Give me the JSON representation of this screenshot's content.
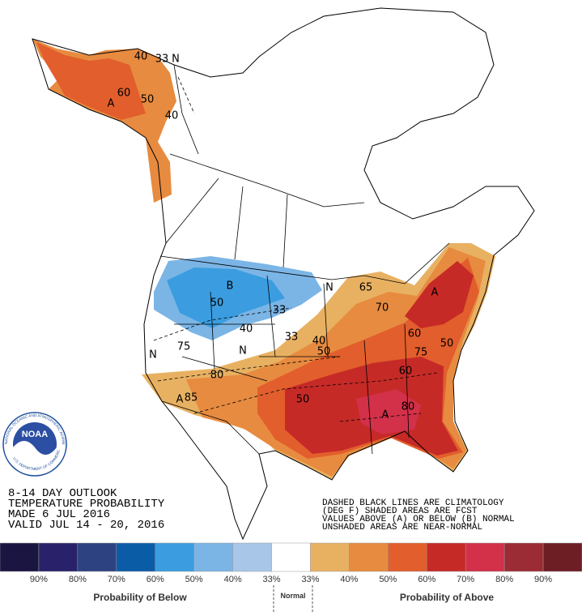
{
  "header": {
    "lines": [
      "8-14 DAY OUTLOOK",
      "TEMPERATURE PROBABILITY",
      "MADE  6 JUL 2016",
      "VALID  JUL 14 - 20, 2016"
    ]
  },
  "notes": {
    "lines": [
      "DASHED BLACK LINES ARE CLIMATOLOGY",
      "(DEG F) SHADED AREAS ARE FCST",
      "VALUES ABOVE (A) OR BELOW (B) NORMAL",
      "UNSHADED AREAS ARE NEAR-NORMAL"
    ]
  },
  "logo": {
    "text": "NOAA",
    "ring_top": "NATIONAL OCEANIC AND ATMOSPHERIC ADMINISTRATION",
    "ring_bottom": "U.S. DEPARTMENT OF COMMERCE"
  },
  "map_labels": [
    "A",
    "40",
    "33",
    "N",
    "60",
    "50",
    "40",
    "B",
    "50",
    "40",
    "33",
    "N",
    "N",
    "N",
    "75",
    "80",
    "A",
    "85",
    "33",
    "40",
    "50",
    "65",
    "70",
    "A",
    "60",
    "75",
    "50",
    "60",
    "50",
    "A",
    "80"
  ],
  "legend": {
    "colors": [
      "#1b1541",
      "#29226a",
      "#2d4280",
      "#0b5ca7",
      "#3b9de0",
      "#7bb5e6",
      "#a8c6e8",
      "#ffffff",
      "#e8b162",
      "#e78b40",
      "#e25e2c",
      "#c62a27",
      "#d33049",
      "#9b2b35",
      "#6c1e24"
    ],
    "labels": [
      "90%",
      "80%",
      "70%",
      "60%",
      "50%",
      "40%",
      "33%",
      "33%",
      "40%",
      "50%",
      "60%",
      "70%",
      "80%",
      "90%"
    ],
    "below_title": "Probability of Below",
    "normal": "Normal",
    "above_title": "Probability of Above"
  }
}
